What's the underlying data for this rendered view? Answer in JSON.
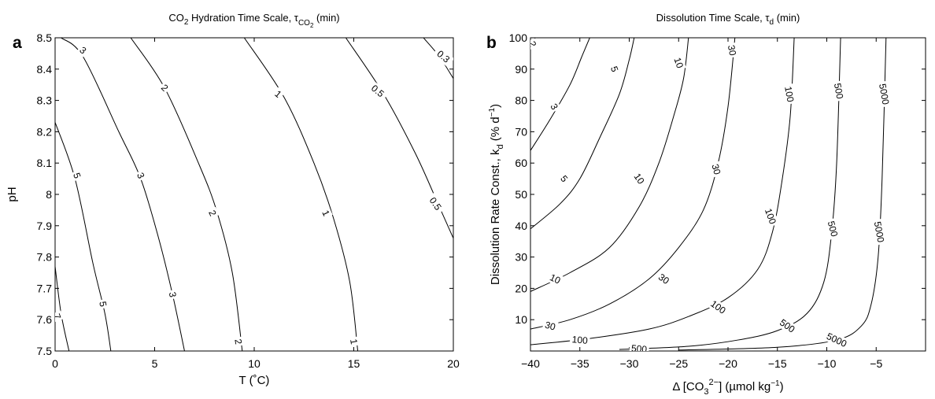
{
  "chart_data": [
    {
      "type": "contour",
      "panel_letter": "a",
      "title_parts": [
        "CO",
        "2",
        " Hydration Time Scale, τ",
        "CO",
        "2",
        " (min)"
      ],
      "xlabel": "T (˚C)",
      "ylabel": "pH",
      "xlim": [
        0,
        20
      ],
      "ylim": [
        7.5,
        8.5
      ],
      "x_ticks": [
        0,
        5,
        10,
        15,
        20
      ],
      "x_tick_labels": [
        "0",
        "5",
        "10",
        "15",
        "20"
      ],
      "y_ticks": [
        7.5,
        7.6,
        7.7,
        7.8,
        7.9,
        8.0,
        8.1,
        8.2,
        8.3,
        8.4,
        8.5
      ],
      "y_tick_labels": [
        "7.5",
        "7.6",
        "7.7",
        "7.8",
        "7.9",
        "8",
        "8.1",
        "8.2",
        "8.3",
        "8.4",
        "8.5"
      ],
      "grid": false,
      "contours": [
        {
          "level": "7",
          "points": [
            [
              0,
              7.77
            ],
            [
              0.3,
              7.62
            ],
            [
              0.7,
              7.5
            ]
          ],
          "labels": [
            {
              "text": "7",
              "at": [
                0.1,
                7.61
              ],
              "rotate": 70
            }
          ]
        },
        {
          "level": "5",
          "points": [
            [
              0,
              8.23
            ],
            [
              1.0,
              8.05
            ],
            [
              1.9,
              7.78
            ],
            [
              2.5,
              7.62
            ],
            [
              2.8,
              7.5
            ]
          ],
          "labels": [
            {
              "text": "5",
              "at": [
                1.1,
                8.06
              ],
              "rotate": 70
            },
            {
              "text": "5",
              "at": [
                2.4,
                7.65
              ],
              "rotate": 80
            }
          ]
        },
        {
          "level": "3",
          "points": [
            [
              0.3,
              8.5
            ],
            [
              1.4,
              8.44
            ],
            [
              3.2,
              8.2
            ],
            [
              4.3,
              8.05
            ],
            [
              5.2,
              7.86
            ],
            [
              5.9,
              7.68
            ],
            [
              6.5,
              7.5
            ]
          ],
          "labels": [
            {
              "text": "3",
              "at": [
                1.4,
                8.46
              ],
              "rotate": 40
            },
            {
              "text": "3",
              "at": [
                4.3,
                8.06
              ],
              "rotate": 65
            },
            {
              "text": "3",
              "at": [
                5.9,
                7.68
              ],
              "rotate": 80
            }
          ]
        },
        {
          "level": "2",
          "points": [
            [
              3.8,
              8.5
            ],
            [
              5.5,
              8.34
            ],
            [
              7.2,
              8.1
            ],
            [
              8.1,
              7.95
            ],
            [
              8.9,
              7.75
            ],
            [
              9.4,
              7.5
            ]
          ],
          "labels": [
            {
              "text": "2",
              "at": [
                5.5,
                8.34
              ],
              "rotate": 45
            },
            {
              "text": "2",
              "at": [
                7.9,
                7.94
              ],
              "rotate": 65
            },
            {
              "text": "2",
              "at": [
                9.2,
                7.53
              ],
              "rotate": 80
            }
          ]
        },
        {
          "level": "1",
          "points": [
            [
              9.5,
              8.5
            ],
            [
              11.5,
              8.31
            ],
            [
              13.0,
              8.1
            ],
            [
              14.0,
              7.92
            ],
            [
              14.8,
              7.72
            ],
            [
              15.2,
              7.5
            ]
          ],
          "labels": [
            {
              "text": "1",
              "at": [
                11.2,
                8.32
              ],
              "rotate": 40
            },
            {
              "text": "1",
              "at": [
                13.6,
                7.94
              ],
              "rotate": 65
            },
            {
              "text": "1",
              "at": [
                15.0,
                7.53
              ],
              "rotate": 80
            }
          ]
        },
        {
          "level": "0.5",
          "points": [
            [
              14.6,
              8.5
            ],
            [
              16.5,
              8.32
            ],
            [
              18.1,
              8.13
            ],
            [
              19.3,
              7.96
            ],
            [
              20.0,
              7.86
            ]
          ],
          "labels": [
            {
              "text": "0.5",
              "at": [
                16.2,
                8.33
              ],
              "rotate": 40
            },
            {
              "text": "0.5",
              "at": [
                19.1,
                7.97
              ],
              "rotate": 55
            }
          ]
        },
        {
          "level": "0.3",
          "points": [
            [
              18.5,
              8.5
            ],
            [
              19.3,
              8.44
            ],
            [
              20.0,
              8.37
            ]
          ],
          "labels": [
            {
              "text": "0.3",
              "at": [
                19.5,
                8.44
              ],
              "rotate": 40
            }
          ]
        }
      ]
    },
    {
      "type": "contour",
      "panel_letter": "b",
      "title_parts": [
        "Dissolution Time Scale, τ",
        "d",
        " (min)"
      ],
      "xlabel_parts": [
        "Δ [CO",
        "3",
        "2−",
        "] (µmol kg",
        "−1",
        ")"
      ],
      "ylabel_parts": [
        "Dissolution Rate Const., k",
        "d",
        " (% d",
        "−1",
        ")"
      ],
      "xlim": [
        -40,
        0
      ],
      "ylim": [
        0,
        100
      ],
      "x_ticks": [
        -40,
        -35,
        -30,
        -25,
        -20,
        -15,
        -10,
        -5
      ],
      "x_tick_labels": [
        "−40",
        "−35",
        "−30",
        "−25",
        "−20",
        "−15",
        "−10",
        "−5"
      ],
      "y_ticks": [
        10,
        20,
        30,
        40,
        50,
        60,
        70,
        80,
        90,
        100
      ],
      "y_tick_labels": [
        "10",
        "20",
        "30",
        "40",
        "50",
        "60",
        "70",
        "80",
        "90",
        "100"
      ],
      "grid": false,
      "contours": [
        {
          "level": "2",
          "points": [
            [
              -40,
              97
            ],
            [
              -39.5,
              100
            ]
          ],
          "labels": [
            {
              "text": "2",
              "at": [
                -39.8,
                98
              ],
              "rotate": 70
            }
          ]
        },
        {
          "level": "3",
          "points": [
            [
              -40,
              64
            ],
            [
              -38,
              74
            ],
            [
              -36,
              85
            ],
            [
              -34.8,
              94
            ],
            [
              -34,
              100
            ]
          ],
          "labels": [
            {
              "text": "3",
              "at": [
                -37.6,
                78
              ],
              "rotate": 60
            }
          ]
        },
        {
          "level": "5",
          "points": [
            [
              -40,
              39
            ],
            [
              -37,
              47
            ],
            [
              -35,
              55
            ],
            [
              -33,
              68
            ],
            [
              -31,
              82
            ],
            [
              -30,
              93
            ],
            [
              -29.5,
              100
            ]
          ],
          "labels": [
            {
              "text": "5",
              "at": [
                -36.6,
                55
              ],
              "rotate": 50
            },
            {
              "text": "5",
              "at": [
                -31.5,
                90
              ],
              "rotate": 70
            }
          ]
        },
        {
          "level": "10",
          "points": [
            [
              -40,
              19
            ],
            [
              -36,
              25
            ],
            [
              -32,
              33
            ],
            [
              -29,
              46
            ],
            [
              -27,
              60
            ],
            [
              -25.5,
              75
            ],
            [
              -24.5,
              87
            ],
            [
              -24,
              100
            ]
          ],
          "labels": [
            {
              "text": "10",
              "at": [
                -37.5,
                23
              ],
              "rotate": 25
            },
            {
              "text": "10",
              "at": [
                -29.0,
                55
              ],
              "rotate": 55
            },
            {
              "text": "10",
              "at": [
                -25.0,
                92
              ],
              "rotate": 70
            }
          ]
        },
        {
          "level": "30",
          "points": [
            [
              -40,
              7
            ],
            [
              -36,
              10
            ],
            [
              -32,
              15
            ],
            [
              -28,
              23
            ],
            [
              -25,
              33
            ],
            [
              -22.5,
              45
            ],
            [
              -21,
              60
            ],
            [
              -20,
              78
            ],
            [
              -19.3,
              100
            ]
          ],
          "labels": [
            {
              "text": "30",
              "at": [
                -38,
                8
              ],
              "rotate": 15
            },
            {
              "text": "30",
              "at": [
                -26.5,
                23
              ],
              "rotate": 35
            },
            {
              "text": "30",
              "at": [
                -21.2,
                58
              ],
              "rotate": 75
            },
            {
              "text": "30",
              "at": [
                -19.6,
                96
              ],
              "rotate": 80
            }
          ]
        },
        {
          "level": "100",
          "points": [
            [
              -40,
              2
            ],
            [
              -34,
              4
            ],
            [
              -28,
              7
            ],
            [
              -24,
              11
            ],
            [
              -20,
              17
            ],
            [
              -17,
              26
            ],
            [
              -15.5,
              38
            ],
            [
              -14.5,
              55
            ],
            [
              -13.7,
              75
            ],
            [
              -13.3,
              100
            ]
          ],
          "labels": [
            {
              "text": "100",
              "at": [
                -35,
                3.5
              ],
              "rotate": 5
            },
            {
              "text": "100",
              "at": [
                -21,
                14
              ],
              "rotate": 35
            },
            {
              "text": "100",
              "at": [
                -15.7,
                43
              ],
              "rotate": 70
            },
            {
              "text": "100",
              "at": [
                -13.8,
                82
              ],
              "rotate": 80
            }
          ]
        },
        {
          "level": "500",
          "points": [
            [
              -31,
              0.5
            ],
            [
              -24,
              1.5
            ],
            [
              -19,
              3.5
            ],
            [
              -15,
              6.5
            ],
            [
              -12,
              12
            ],
            [
              -10.3,
              22
            ],
            [
              -9.5,
              38
            ],
            [
              -9.0,
              60
            ],
            [
              -8.6,
              100
            ]
          ],
          "labels": [
            {
              "text": "500",
              "at": [
                -29,
                0.7
              ],
              "rotate": 5
            },
            {
              "text": "500",
              "at": [
                -14,
                8
              ],
              "rotate": 35
            },
            {
              "text": "500",
              "at": [
                -9.4,
                39
              ],
              "rotate": 75
            },
            {
              "text": "500",
              "at": [
                -8.8,
                83
              ],
              "rotate": 80
            }
          ]
        },
        {
          "level": "5000",
          "points": [
            [
              -25,
              0.3
            ],
            [
              -15,
              1.2
            ],
            [
              -9,
              3.5
            ],
            [
              -6.5,
              8
            ],
            [
              -5.5,
              15
            ],
            [
              -4.8,
              30
            ],
            [
              -4.4,
              55
            ],
            [
              -4.0,
              100
            ]
          ],
          "labels": [
            {
              "text": "5000",
              "at": [
                -9,
                3.5
              ],
              "rotate": 25
            },
            {
              "text": "5000",
              "at": [
                -4.7,
                38
              ],
              "rotate": 80
            },
            {
              "text": "5000",
              "at": [
                -4.2,
                82
              ],
              "rotate": 80
            }
          ]
        }
      ]
    }
  ]
}
